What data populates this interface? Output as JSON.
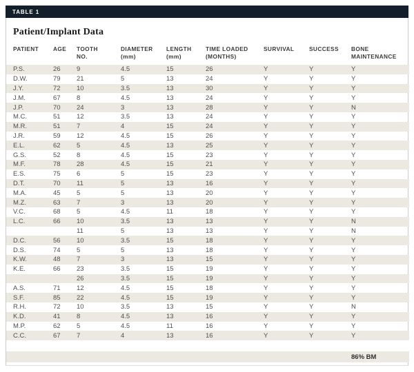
{
  "card": {
    "tag": "TABLE 1",
    "title": "Patient/Implant Data"
  },
  "table": {
    "columns": [
      {
        "key": "patient",
        "label": "PATIENT"
      },
      {
        "key": "age",
        "label": "AGE"
      },
      {
        "key": "tooth-no",
        "label": "TOOTH\nNO."
      },
      {
        "key": "diameter-mm",
        "label": "DIAMETER\n(mm)"
      },
      {
        "key": "length-mm",
        "label": "LENGTH\n(mm)"
      },
      {
        "key": "time-loaded-months",
        "label": "TIME LOADED\n(MONTHS)"
      },
      {
        "key": "survival",
        "label": "SURVIVAL"
      },
      {
        "key": "success",
        "label": "SUCCESS"
      },
      {
        "key": "bone-maintenance",
        "label": "BONE\nMAINTENANCE"
      }
    ],
    "rows": [
      [
        "P.S.",
        "26",
        "9",
        "4.5",
        "15",
        "26",
        "Y",
        "Y",
        "Y"
      ],
      [
        "D.W.",
        "79",
        "21",
        "5",
        "13",
        "24",
        "Y",
        "Y",
        "Y"
      ],
      [
        "J.Y.",
        "72",
        "10",
        "3.5",
        "13",
        "30",
        "Y",
        "Y",
        "Y"
      ],
      [
        "J.M.",
        "67",
        "8",
        "4.5",
        "13",
        "24",
        "Y",
        "Y",
        "Y"
      ],
      [
        "J.P.",
        "70",
        "24",
        "3",
        "13",
        "28",
        "Y",
        "Y",
        "N"
      ],
      [
        "M.C.",
        "51",
        "12",
        "3.5",
        "13",
        "24",
        "Y",
        "Y",
        "Y"
      ],
      [
        "M.R.",
        "51",
        "7",
        "4",
        "15",
        "24",
        "Y",
        "Y",
        "Y"
      ],
      [
        "J.R.",
        "59",
        "12",
        "4.5",
        "15",
        "26",
        "Y",
        "Y",
        "Y"
      ],
      [
        "E.L.",
        "62",
        "5",
        "4.5",
        "13",
        "25",
        "Y",
        "Y",
        "Y"
      ],
      [
        "G.S.",
        "52",
        "8",
        "4.5",
        "15",
        "23",
        "Y",
        "Y",
        "Y"
      ],
      [
        "M.F.",
        "78",
        "28",
        "4.5",
        "15",
        "21",
        "Y",
        "Y",
        "Y"
      ],
      [
        "E.S.",
        "75",
        "6",
        "5",
        "15",
        "23",
        "Y",
        "Y",
        "Y"
      ],
      [
        "D.T.",
        "70",
        "11",
        "5",
        "13",
        "16",
        "Y",
        "Y",
        "Y"
      ],
      [
        "M.A.",
        "45",
        "5",
        "5",
        "13",
        "20",
        "Y",
        "Y",
        "Y"
      ],
      [
        "M.Z.",
        "63",
        "7",
        "3",
        "13",
        "20",
        "Y",
        "Y",
        "Y"
      ],
      [
        "V.C.",
        "68",
        "5",
        "4.5",
        "11",
        "18",
        "Y",
        "Y",
        "Y"
      ],
      [
        "L.C.",
        "66",
        "10",
        "3.5",
        "13",
        "13",
        "Y",
        "Y",
        "N"
      ],
      [
        "",
        "",
        "11",
        "5",
        "13",
        "13",
        "Y",
        "Y",
        "N"
      ],
      [
        "D.C.",
        "56",
        "10",
        "3.5",
        "15",
        "18",
        "Y",
        "Y",
        "Y"
      ],
      [
        "D.S.",
        "74",
        "5",
        "5",
        "13",
        "18",
        "Y",
        "Y",
        "Y"
      ],
      [
        "K.W.",
        "48",
        "7",
        "3",
        "13",
        "15",
        "Y",
        "Y",
        "Y"
      ],
      [
        "K.E.",
        "66",
        "23",
        "3.5",
        "15",
        "19",
        "Y",
        "Y",
        "Y"
      ],
      [
        "",
        "",
        "26",
        "3.5",
        "15",
        "19",
        "Y",
        "Y",
        "Y"
      ],
      [
        "A.S.",
        "71",
        "12",
        "4.5",
        "15",
        "18",
        "Y",
        "Y",
        "Y"
      ],
      [
        "S.F.",
        "85",
        "22",
        "4.5",
        "15",
        "19",
        "Y",
        "Y",
        "Y"
      ],
      [
        "R.H.",
        "72",
        "10",
        "3.5",
        "13",
        "15",
        "Y",
        "Y",
        "N"
      ],
      [
        "K.D.",
        "41",
        "8",
        "4.5",
        "13",
        "16",
        "Y",
        "Y",
        "Y"
      ],
      [
        "M.P.",
        "62",
        "5",
        "4.5",
        "11",
        "16",
        "Y",
        "Y",
        "Y"
      ],
      [
        "C.C.",
        "67",
        "7",
        "4",
        "13",
        "16",
        "Y",
        "Y",
        "Y"
      ]
    ],
    "footer_summary": "86% BM"
  },
  "colors": {
    "tag_bar": "#13202b",
    "row_stripe": "#ece9e2",
    "body_text": "#4e4e4e"
  }
}
